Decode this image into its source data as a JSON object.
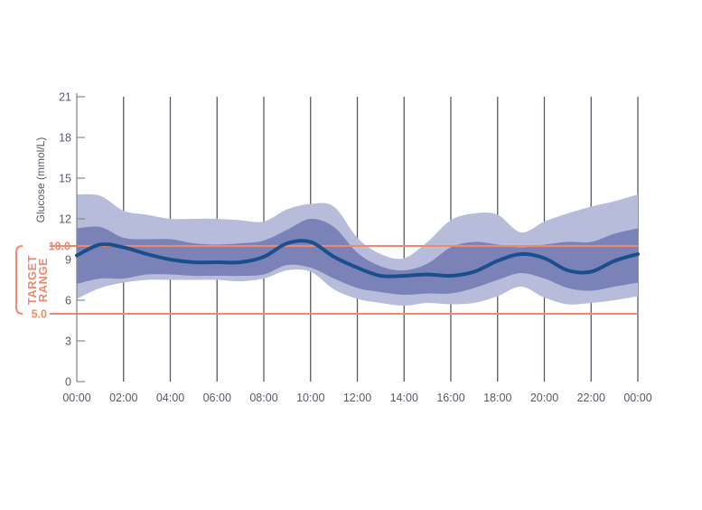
{
  "chart_data": {
    "type": "area",
    "title": "",
    "xlabel": "",
    "ylabel": "Glucose (mmol/L)",
    "ylim": [
      0,
      21
    ],
    "yticks": [
      0,
      3,
      6,
      9,
      12,
      15,
      18,
      21
    ],
    "xlim": [
      0,
      24
    ],
    "xtick_labels": [
      "00:00",
      "02:00",
      "04:00",
      "06:00",
      "08:00",
      "10:00",
      "12:00",
      "14:00",
      "16:00",
      "18:00",
      "20:00",
      "22:00",
      "00:00"
    ],
    "grid": "vertical",
    "target_range": {
      "label_lines": [
        "TARGET",
        "RANGE"
      ],
      "low": 5.0,
      "high": 10.0,
      "low_label": "5.0",
      "high_label": "10.0",
      "color": "#ef8a6e"
    },
    "colors": {
      "outer_band": "#b7bcdb",
      "inner_band": "#7a82b8",
      "median_line": "#1a4f8e",
      "grid": "#555a66",
      "axis": "#888888"
    },
    "x": [
      0,
      1,
      2,
      3,
      4,
      5,
      6,
      7,
      8,
      9,
      10,
      11,
      12,
      13,
      14,
      15,
      16,
      17,
      18,
      19,
      20,
      21,
      22,
      23,
      24
    ],
    "series": [
      {
        "role": "p95",
        "values": [
          13.8,
          13.7,
          12.6,
          12.3,
          12.0,
          12.0,
          12.0,
          11.9,
          11.8,
          12.7,
          13.1,
          12.9,
          10.6,
          9.4,
          9.1,
          10.3,
          11.9,
          12.4,
          12.3,
          11.0,
          11.8,
          12.4,
          12.9,
          13.3,
          13.8
        ]
      },
      {
        "role": "p75",
        "values": [
          11.3,
          11.4,
          10.6,
          10.5,
          10.5,
          10.2,
          10.1,
          10.2,
          10.4,
          11.2,
          12.0,
          11.4,
          9.5,
          8.5,
          8.2,
          8.7,
          9.9,
          10.3,
          10.1,
          9.9,
          10.1,
          10.3,
          10.3,
          10.9,
          11.3
        ]
      },
      {
        "role": "median",
        "values": [
          9.3,
          10.1,
          9.9,
          9.4,
          9.0,
          8.8,
          8.8,
          8.8,
          9.2,
          10.2,
          10.3,
          9.2,
          8.4,
          7.8,
          7.8,
          7.9,
          7.8,
          8.1,
          8.9,
          9.4,
          9.1,
          8.2,
          8.1,
          8.9,
          9.4
        ]
      },
      {
        "role": "p25",
        "values": [
          7.2,
          7.6,
          7.6,
          7.9,
          7.9,
          7.8,
          7.8,
          7.8,
          7.9,
          8.6,
          8.4,
          7.6,
          6.9,
          6.6,
          6.4,
          6.5,
          6.5,
          6.9,
          7.5,
          8.0,
          7.6,
          6.9,
          6.7,
          7.0,
          7.3
        ]
      },
      {
        "role": "p5",
        "values": [
          6.1,
          6.9,
          7.3,
          7.5,
          7.5,
          7.5,
          7.5,
          7.4,
          7.6,
          8.2,
          8.1,
          6.8,
          6.1,
          5.8,
          5.6,
          5.8,
          5.7,
          5.8,
          6.3,
          7.0,
          6.2,
          5.7,
          5.8,
          6.0,
          6.3
        ]
      }
    ]
  }
}
